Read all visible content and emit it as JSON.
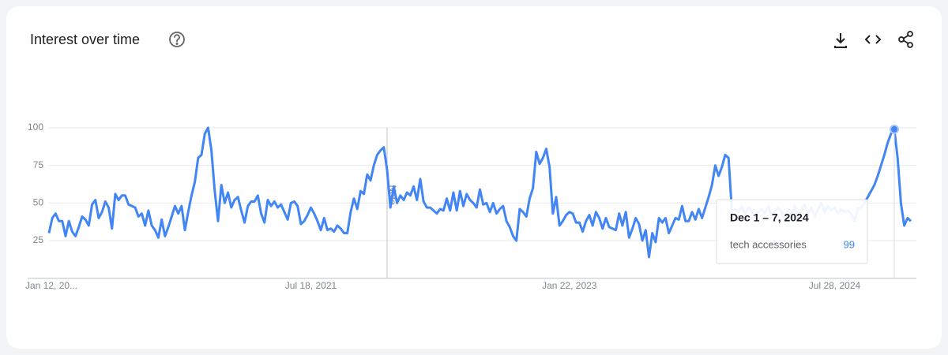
{
  "chart_data": {
    "type": "line",
    "title": "Interest over time",
    "categories": [
      "Jan 12, 20...",
      null,
      null,
      null,
      null,
      null,
      null,
      null,
      null,
      null,
      null,
      null,
      null,
      null,
      null,
      null,
      null,
      null,
      null,
      null,
      null,
      null,
      null,
      null,
      null,
      null,
      null,
      null,
      null,
      null,
      null,
      null,
      null,
      null,
      null,
      null,
      null,
      null,
      null,
      null,
      null,
      null,
      null,
      null,
      null,
      null,
      null,
      null,
      null,
      null,
      null,
      null,
      null,
      null,
      null,
      null,
      null,
      null,
      null,
      null,
      null,
      null,
      null,
      null,
      null,
      null,
      null,
      null,
      null,
      null,
      null,
      null,
      null,
      null,
      null,
      null,
      null,
      null,
      null,
      "Jul 18, 2021",
      null,
      null,
      null,
      null,
      null,
      null,
      null,
      null,
      null,
      null,
      null,
      null,
      null,
      null,
      null,
      null,
      null,
      null,
      null,
      null,
      null,
      null,
      null,
      null,
      null,
      null,
      null,
      null,
      null,
      null,
      null,
      null,
      null,
      null,
      null,
      null,
      null,
      null,
      null,
      null,
      null,
      null,
      null,
      null,
      null,
      null,
      null,
      null,
      null,
      null,
      null,
      null,
      null,
      null,
      null,
      null,
      null,
      null,
      null,
      null,
      null,
      null,
      null,
      null,
      null,
      null,
      null,
      null,
      null,
      null,
      null,
      null,
      null,
      null,
      null,
      null,
      null,
      "Jan 22, 2023",
      null,
      null,
      null,
      null,
      null,
      null,
      null,
      null,
      null,
      null,
      null,
      null,
      null,
      null,
      null,
      null,
      null,
      null,
      null,
      null,
      null,
      null,
      null,
      null,
      null,
      null,
      null,
      null,
      null,
      null,
      null,
      null,
      null,
      null,
      null,
      null,
      null,
      null,
      null,
      null,
      null,
      null,
      null,
      null,
      null,
      null,
      null,
      null,
      null,
      null,
      null,
      null,
      null,
      null,
      null,
      null,
      null,
      null,
      null,
      null,
      null,
      null,
      null,
      null,
      null,
      null,
      null,
      null,
      null,
      null,
      null,
      null,
      null,
      null,
      null,
      null,
      null,
      null,
      null,
      "Jul 28, 2024",
      null,
      null,
      null,
      null,
      null,
      null,
      null,
      null,
      null,
      null,
      null,
      null,
      null,
      null,
      null,
      null,
      null,
      null,
      null,
      null,
      null,
      null,
      null
    ],
    "series": [
      {
        "name": "tech accessories",
        "color": "#4285f4",
        "values": [
          30,
          40,
          43,
          38,
          38,
          28,
          38,
          31,
          28,
          34,
          41,
          39,
          35,
          49,
          52,
          40,
          44,
          51,
          47,
          33,
          56,
          52,
          55,
          55,
          49,
          48,
          47,
          41,
          43,
          35,
          45,
          35,
          32,
          27,
          39,
          28,
          34,
          41,
          48,
          43,
          48,
          32,
          44,
          55,
          64,
          80,
          82,
          96,
          100,
          85,
          58,
          38,
          62,
          50,
          57,
          47,
          52,
          54,
          45,
          37,
          48,
          51,
          51,
          55,
          43,
          37,
          52,
          48,
          51,
          47,
          49,
          44,
          39,
          50,
          51,
          48,
          36,
          38,
          42,
          47,
          43,
          38,
          32,
          40,
          32,
          33,
          31,
          35,
          33,
          30,
          30,
          44,
          53,
          46,
          58,
          56,
          69,
          65,
          75,
          82,
          85,
          87,
          72,
          47,
          61,
          50,
          55,
          52,
          57,
          55,
          61,
          52,
          66,
          51,
          47,
          47,
          45,
          43,
          46,
          45,
          53,
          45,
          57,
          45,
          58,
          48,
          56,
          52,
          50,
          47,
          59,
          49,
          50,
          44,
          50,
          43,
          46,
          48,
          38,
          34,
          28,
          25,
          46,
          44,
          41,
          53,
          60,
          84,
          76,
          80,
          86,
          74,
          43,
          54,
          35,
          38,
          42,
          44,
          43,
          37,
          37,
          31,
          38,
          42,
          35,
          44,
          40,
          33,
          40,
          34,
          33,
          32,
          43,
          35,
          44,
          27,
          33,
          40,
          36,
          25,
          32,
          14,
          30,
          24,
          40,
          37,
          40,
          30,
          35,
          40,
          39,
          48,
          38,
          38,
          44,
          39,
          46,
          40,
          47,
          54,
          62,
          75,
          68,
          74,
          82,
          80,
          45,
          46,
          44,
          48,
          42,
          47,
          45,
          40,
          44,
          46,
          43,
          48,
          41,
          45,
          47,
          44,
          39,
          46,
          42,
          48,
          40,
          45,
          49,
          43,
          47,
          41,
          46,
          50,
          44,
          48,
          45,
          47,
          43,
          46,
          44,
          45,
          43,
          38,
          46,
          47,
          50,
          54,
          58,
          62,
          68,
          75,
          82,
          90,
          96,
          99,
          80,
          50,
          35,
          40,
          38
        ]
      }
    ],
    "ylim": [
      0,
      100
    ],
    "yticks": [
      25,
      50,
      75,
      100
    ],
    "grid": true,
    "annotations": [
      "Note"
    ],
    "tooltip_label": "Dec 1 – 7, 2024"
  }
}
